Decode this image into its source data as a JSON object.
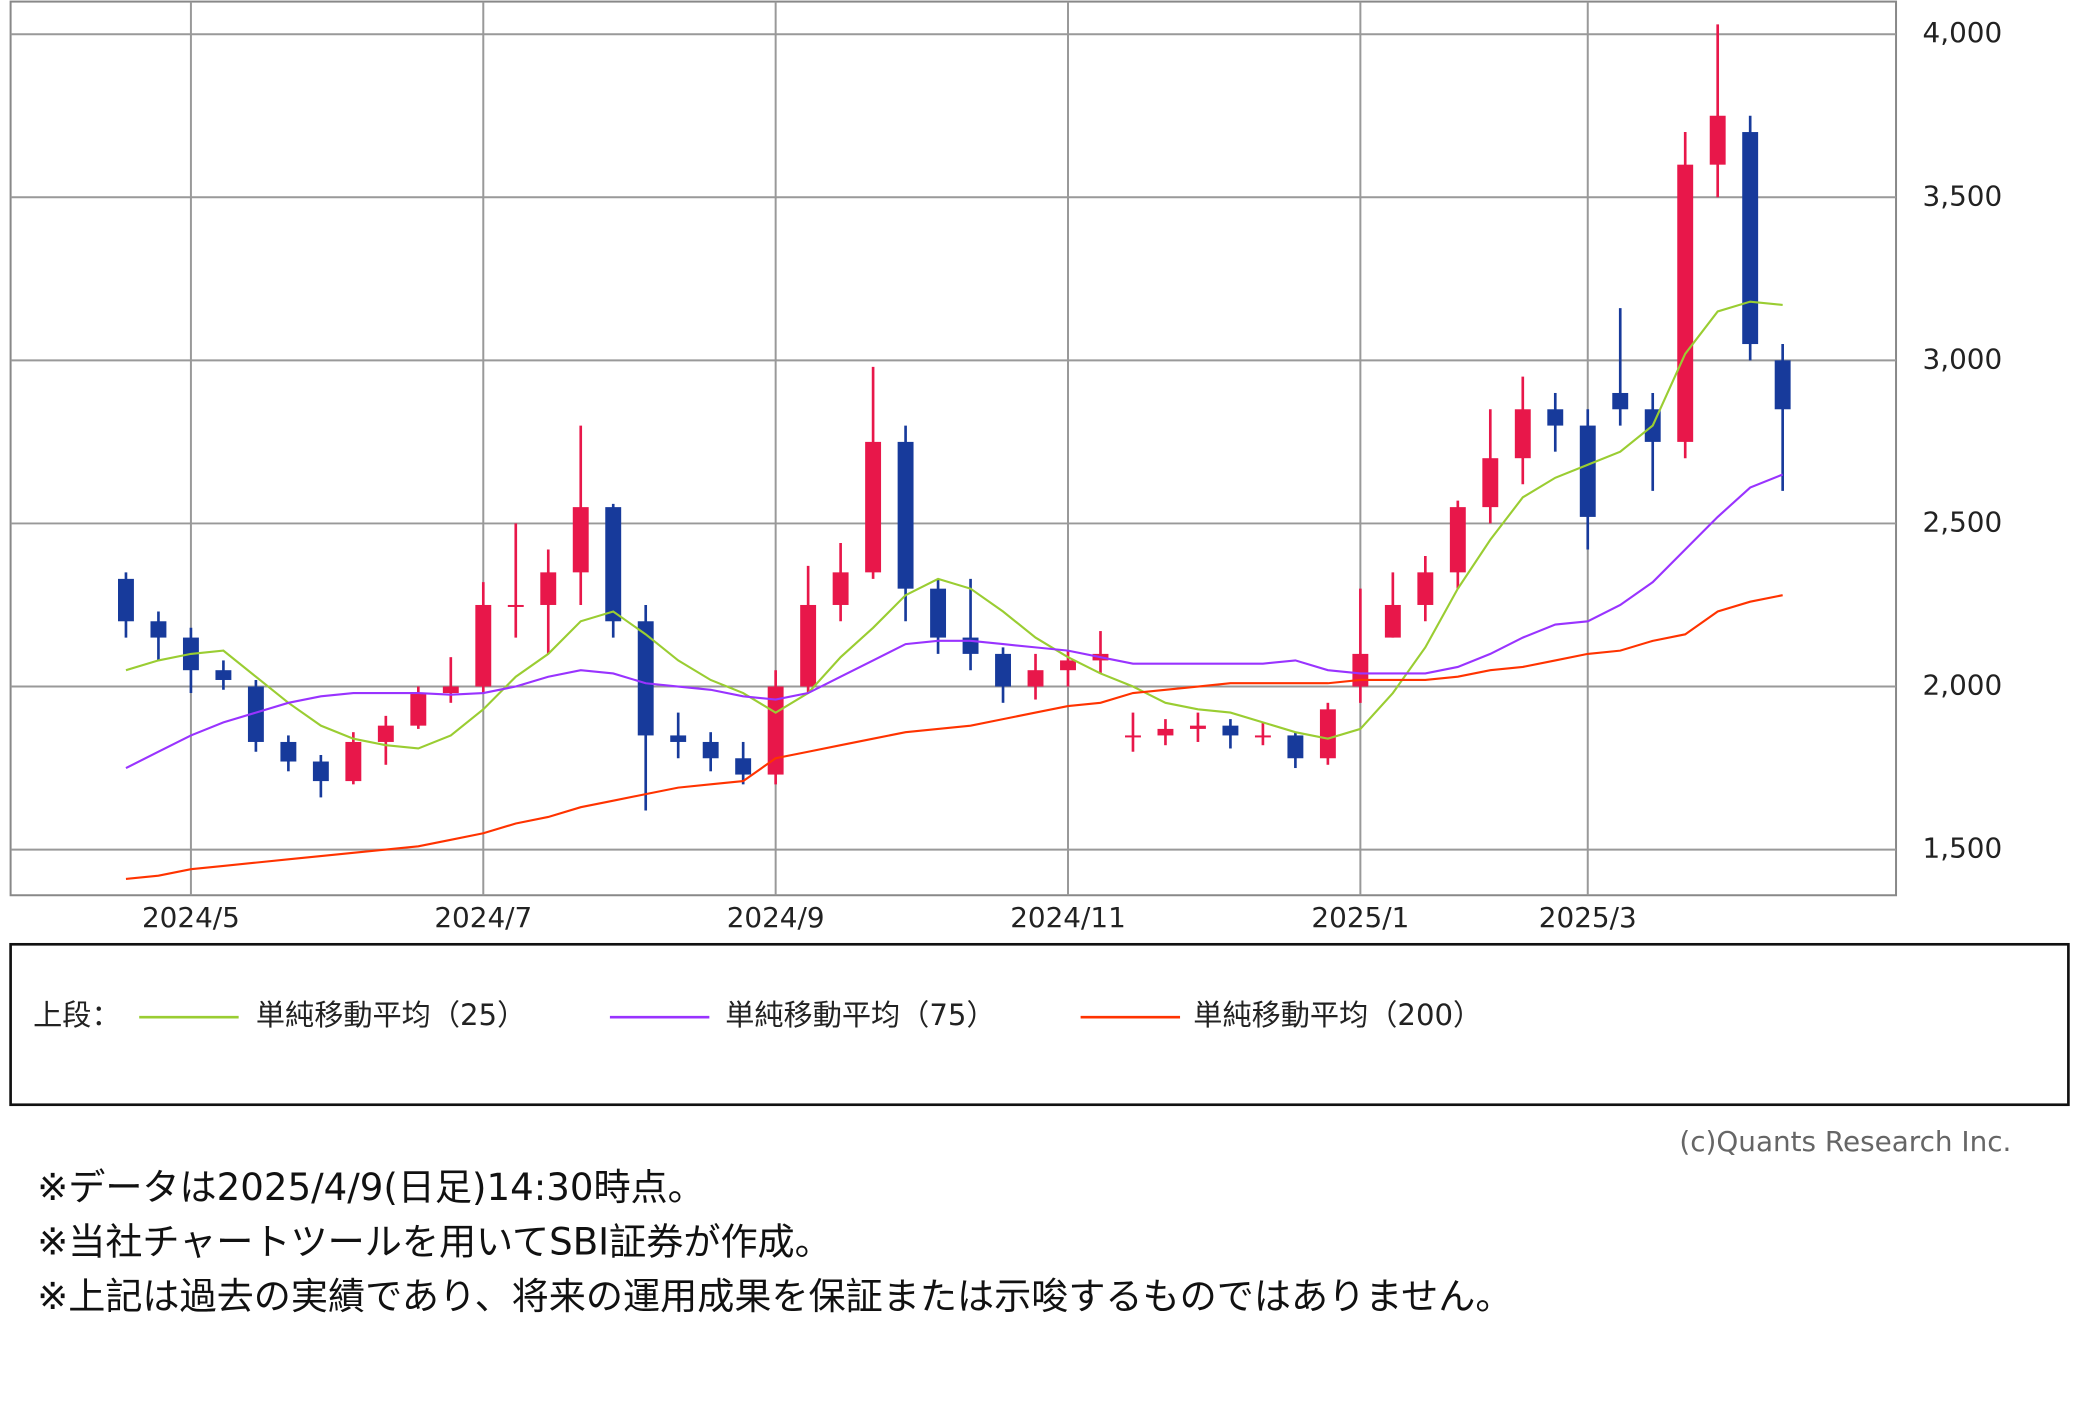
{
  "chart_data": {
    "type": "candlestick",
    "categories": [
      null,
      null,
      "2024/5",
      null,
      null,
      null,
      null,
      null,
      null,
      null,
      null,
      "2024/7",
      null,
      null,
      null,
      null,
      null,
      null,
      null,
      null,
      "2024/9",
      null,
      null,
      null,
      null,
      null,
      null,
      null,
      null,
      "2024/11",
      null,
      null,
      null,
      null,
      null,
      null,
      null,
      null,
      "2025/1",
      null,
      null,
      null,
      null,
      null,
      null,
      "2025/3",
      null,
      null,
      null,
      null,
      null,
      null
    ],
    "open": [
      2330,
      2200,
      2150,
      2050,
      2000,
      1830,
      1770,
      1710,
      1830,
      1880,
      1980,
      2000,
      2250,
      2250,
      2350,
      2550,
      2200,
      1850,
      1830,
      1780,
      1730,
      2000,
      2250,
      2350,
      2750,
      2300,
      2150,
      2100,
      2000,
      2050,
      2080,
      1850,
      1850,
      1870,
      1880,
      1850,
      1850,
      1780,
      2000,
      2150,
      2250,
      2350,
      2550,
      2700,
      2850,
      2800,
      2900,
      2850,
      2750,
      3600,
      3700,
      3000
    ],
    "high": [
      2350,
      2230,
      2180,
      2080,
      2020,
      1850,
      1790,
      1860,
      1910,
      2000,
      2090,
      2320,
      2500,
      2420,
      2800,
      2560,
      2250,
      1920,
      1860,
      1830,
      2050,
      2370,
      2440,
      2980,
      2800,
      2330,
      2330,
      2120,
      2100,
      2110,
      2170,
      1920,
      1900,
      1920,
      1900,
      1890,
      1860,
      1950,
      2300,
      2350,
      2400,
      2570,
      2850,
      2950,
      2900,
      2850,
      3160,
      2900,
      3700,
      4030,
      3750,
      3050
    ],
    "low": [
      2150,
      2080,
      1980,
      1990,
      1800,
      1740,
      1660,
      1700,
      1760,
      1870,
      1950,
      1980,
      2150,
      2100,
      2250,
      2150,
      1620,
      1780,
      1740,
      1700,
      1700,
      1980,
      2200,
      2330,
      2200,
      2100,
      2050,
      1950,
      1960,
      2000,
      2040,
      1800,
      1820,
      1830,
      1810,
      1820,
      1750,
      1760,
      1950,
      2150,
      2200,
      2300,
      2500,
      2620,
      2720,
      2420,
      2800,
      2600,
      2700,
      3500,
      3000,
      2600
    ],
    "close": [
      2200,
      2150,
      2050,
      2020,
      1830,
      1770,
      1710,
      1830,
      1880,
      1980,
      2000,
      2250,
      2250,
      2350,
      2550,
      2200,
      1850,
      1830,
      1780,
      1730,
      2000,
      2250,
      2350,
      2750,
      2300,
      2150,
      2100,
      2000,
      2050,
      2080,
      2100,
      1850,
      1870,
      1880,
      1850,
      1850,
      1780,
      1930,
      2100,
      2250,
      2350,
      2550,
      2700,
      2850,
      2800,
      2520,
      2850,
      2750,
      3600,
      3750,
      3050,
      2850
    ],
    "up_color": "#e8174a",
    "down_color": "#173a9b",
    "series": [
      {
        "name": "単純移動平均（25）",
        "color": "#9acd32",
        "values": [
          2050,
          2080,
          2100,
          2110,
          2030,
          1950,
          1880,
          1840,
          1820,
          1810,
          1850,
          1930,
          2030,
          2100,
          2200,
          2230,
          2160,
          2080,
          2020,
          1980,
          1920,
          1980,
          2090,
          2180,
          2280,
          2330,
          2300,
          2230,
          2150,
          2090,
          2040,
          2000,
          1950,
          1930,
          1920,
          1890,
          1860,
          1840,
          1870,
          1980,
          2120,
          2300,
          2450,
          2580,
          2640,
          2680,
          2720,
          2800,
          3020,
          3150,
          3180,
          3170
        ]
      },
      {
        "name": "単純移動平均（75）",
        "color": "#9933ff",
        "values": [
          1750,
          1800,
          1850,
          1890,
          1920,
          1950,
          1970,
          1980,
          1980,
          1980,
          1975,
          1980,
          2000,
          2030,
          2050,
          2040,
          2010,
          2000,
          1990,
          1970,
          1960,
          1980,
          2030,
          2080,
          2130,
          2140,
          2140,
          2130,
          2120,
          2110,
          2090,
          2070,
          2070,
          2070,
          2070,
          2070,
          2080,
          2050,
          2040,
          2040,
          2040,
          2060,
          2100,
          2150,
          2190,
          2200,
          2250,
          2320,
          2420,
          2520,
          2610,
          2650
        ]
      },
      {
        "name": "単純移動平均（200）",
        "color": "#ff3300",
        "values": [
          1410,
          1420,
          1440,
          1450,
          1460,
          1470,
          1480,
          1490,
          1500,
          1510,
          1530,
          1550,
          1580,
          1600,
          1630,
          1650,
          1670,
          1690,
          1700,
          1710,
          1780,
          1800,
          1820,
          1840,
          1860,
          1870,
          1880,
          1900,
          1920,
          1940,
          1950,
          1980,
          1990,
          2000,
          2010,
          2010,
          2010,
          2010,
          2020,
          2020,
          2020,
          2030,
          2050,
          2060,
          2080,
          2100,
          2110,
          2140,
          2160,
          2230,
          2260,
          2280
        ]
      }
    ],
    "ylim": [
      1360,
      4100
    ],
    "yticks": [
      {
        "value": 1500,
        "label": "1,500"
      },
      {
        "value": 2000,
        "label": "2,000"
      },
      {
        "value": 2500,
        "label": "2,500"
      },
      {
        "value": 3000,
        "label": "3,000"
      },
      {
        "value": 3500,
        "label": "3,500"
      },
      {
        "value": 4000,
        "label": "4,000"
      }
    ],
    "grid": true,
    "legend_title": "上段："
  },
  "copyright": "(c)Quants Research Inc.",
  "notes": [
    "※データは2025/4/9(日足)14:30時点。",
    "※当社チャートツールを用いてSBI証券が作成。",
    "※上記は過去の実績であり、将来の運用成果を保証または示唆するものではありません。"
  ]
}
